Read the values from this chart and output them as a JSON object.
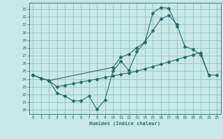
{
  "xlabel": "Humidex (Indice chaleur)",
  "bg_color": "#c8e8e8",
  "grid_color": "#88bbbb",
  "line_color": "#2a6b6b",
  "xlim": [
    -0.5,
    23.5
  ],
  "ylim": [
    19.5,
    33.8
  ],
  "yticks": [
    20,
    21,
    22,
    23,
    24,
    25,
    26,
    27,
    28,
    29,
    30,
    31,
    32,
    33
  ],
  "xticks": [
    0,
    1,
    2,
    3,
    4,
    5,
    6,
    7,
    8,
    9,
    10,
    11,
    12,
    13,
    14,
    15,
    16,
    17,
    18,
    19,
    20,
    21,
    22,
    23
  ],
  "line1_x": [
    0,
    1,
    2,
    3,
    4,
    5,
    6,
    7,
    8,
    9,
    10,
    11,
    12,
    13,
    14,
    15,
    16,
    17,
    18
  ],
  "line1_y": [
    24.5,
    24.1,
    23.8,
    22.2,
    21.8,
    21.2,
    21.2,
    21.8,
    20.1,
    21.3,
    25.0,
    26.3,
    25.1,
    27.5,
    28.7,
    32.5,
    33.2,
    33.1,
    30.8
  ],
  "line2_x": [
    0,
    1,
    2,
    10,
    11,
    12,
    13,
    14,
    15,
    16,
    17,
    18,
    19,
    20,
    21,
    22
  ],
  "line2_y": [
    24.5,
    24.1,
    23.8,
    25.5,
    26.8,
    27.2,
    28.0,
    28.8,
    30.2,
    31.7,
    32.2,
    31.0,
    28.2,
    27.8,
    27.1,
    24.5
  ],
  "line3_x": [
    0,
    1,
    2,
    3,
    4,
    5,
    6,
    7,
    8,
    9,
    10,
    11,
    12,
    13,
    14,
    15,
    16,
    17,
    18,
    19,
    20,
    21,
    22,
    23
  ],
  "line3_y": [
    24.5,
    24.1,
    23.8,
    23.0,
    23.2,
    23.4,
    23.6,
    23.8,
    24.0,
    24.2,
    24.4,
    24.6,
    24.8,
    25.0,
    25.3,
    25.6,
    25.9,
    26.2,
    26.5,
    26.8,
    27.1,
    27.4,
    24.5,
    24.5
  ]
}
